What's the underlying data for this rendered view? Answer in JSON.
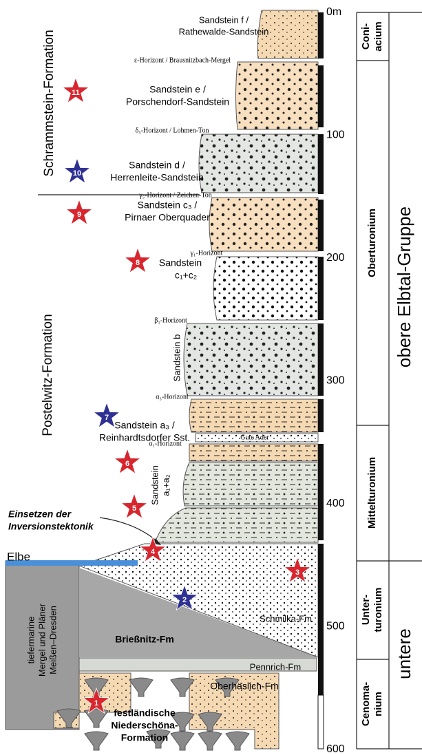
{
  "depth_scale": [
    "0m",
    "100",
    "200",
    "300",
    "400",
    "500",
    "600"
  ],
  "formations": [
    "Schrammstein-Formation",
    "Postelwitz-Formation"
  ],
  "stages": [
    [
      "Coni-",
      "acium"
    ],
    [
      "Oberturonium"
    ],
    [
      "Mittelturonium"
    ],
    [
      "Unter-",
      "turonium"
    ],
    [
      "Cenoma-",
      "nium"
    ]
  ],
  "groups": [
    "obere Elbtal-Gruppe",
    "untere"
  ],
  "units": [
    [
      "Sandstein f /",
      "Rathewalde-Sandstein"
    ],
    [
      "Sandstein e /",
      "Porschendorf-Sandstein"
    ],
    [
      "Sandstein d /",
      "Herrenleite-Sandstein"
    ],
    [
      "Sandstein c₃ /",
      "Pirnaer Oberquader"
    ],
    [
      "Sandstein",
      "c₁+c₂"
    ],
    [
      "Sandstein b"
    ],
    [
      "Sandstein a₃ /",
      "Reinhardtsdorfer Sst."
    ],
    [
      "Gute Ader"
    ],
    [
      "Sandstein",
      "a₁+a₂"
    ],
    [
      "Schmilka-Fm"
    ],
    [
      "Brießnitz-Fm"
    ],
    [
      "tiefermarine",
      "Mergel und Pläner",
      "Meißen–Dresden"
    ],
    [
      "Pennrich-Fm"
    ],
    [
      "Oberhäslich-Fm"
    ],
    [
      "festländische",
      "Niederschöna-",
      "Formation"
    ]
  ],
  "horizons": [
    "ε-Horizont / Brausnitzbach-Mergel",
    "δ₅-Horizont / Lohmen-Ton",
    "γ₅-Horizont / Zeichen-Ton",
    "γ₁-Horizont",
    "β₁-Horizont",
    "α₃-Horizont",
    "α₁-Horizont"
  ],
  "stars": [
    "11",
    "10",
    "9",
    "8",
    "7",
    "6",
    "5",
    "4",
    "3",
    "2",
    "1"
  ],
  "annotations": {
    "inversion": [
      "Einsetzen der",
      "Inversionstektonik"
    ],
    "river": "Elbe"
  }
}
